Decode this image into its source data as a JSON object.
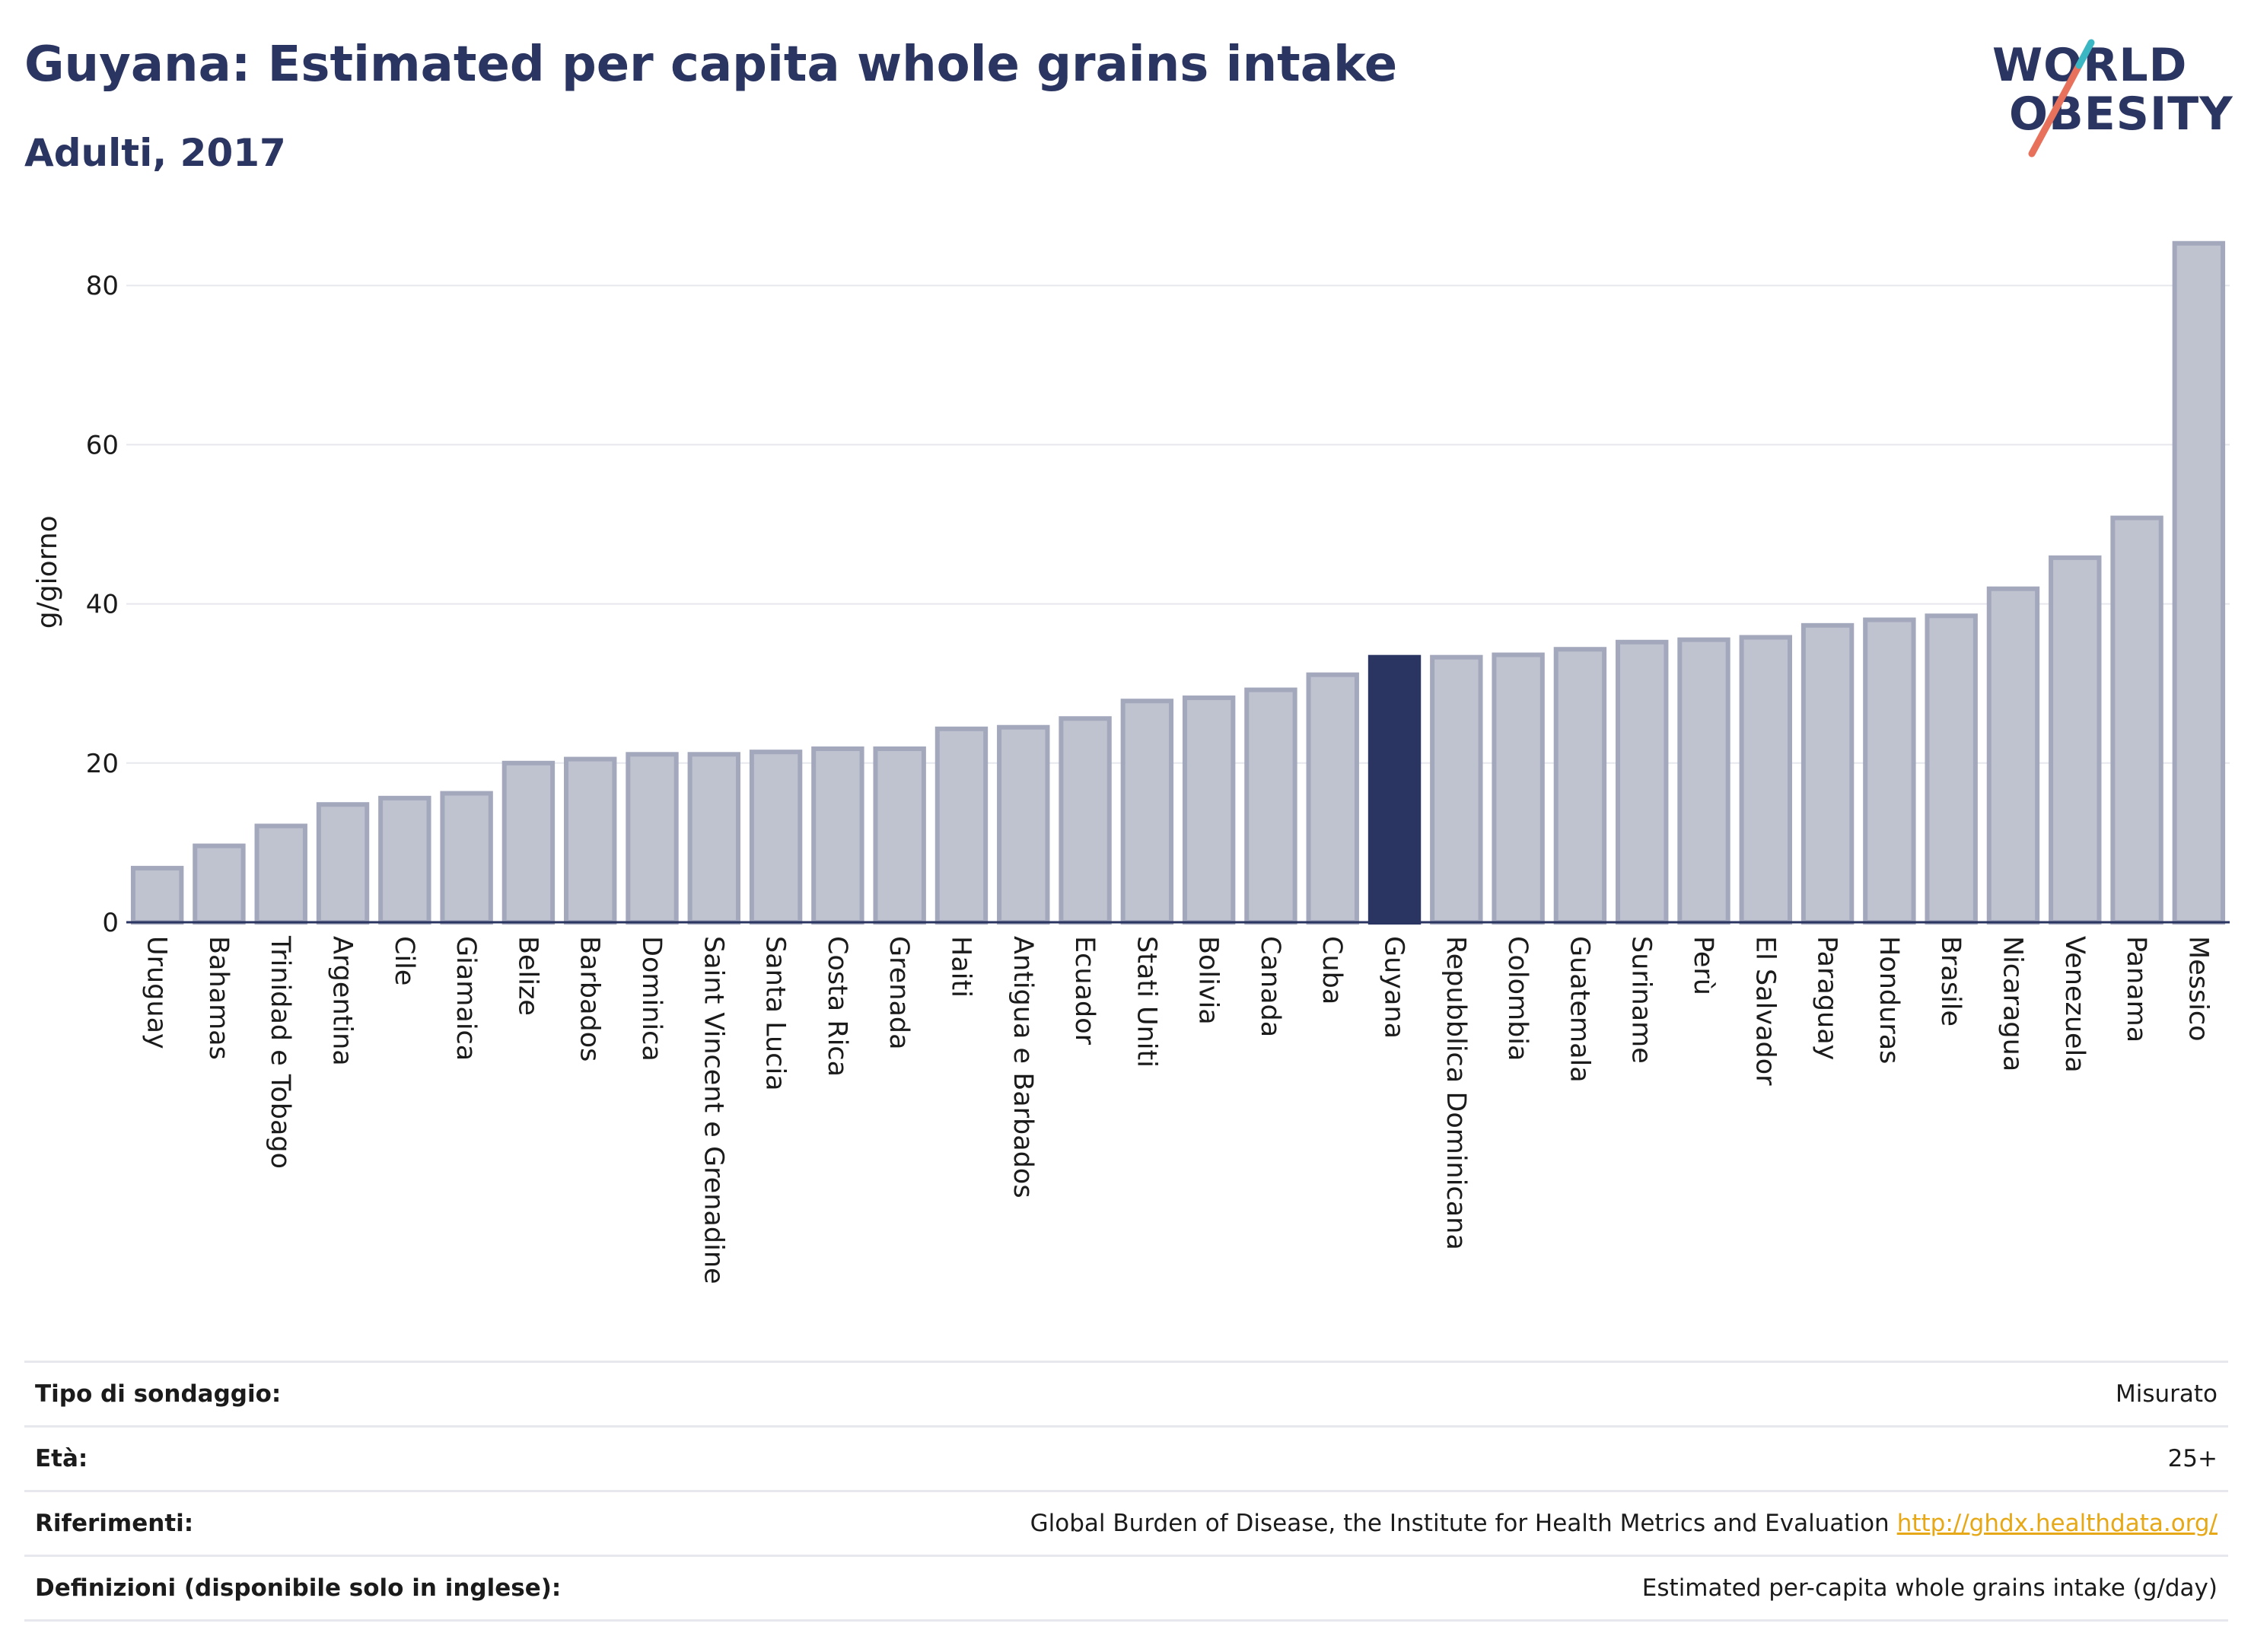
{
  "title": "Guyana: Estimated per capita whole grains intake",
  "subtitle": "Adulti, 2017",
  "logo": {
    "line1": "WORLD",
    "line2": "OBESITY"
  },
  "colors": {
    "bar": "#bfc2cf",
    "bar_border": "#a3a8bc",
    "highlight": "#2b3561",
    "grid": "#e6e8ee",
    "axis": "#2b3561"
  },
  "chart_data": {
    "type": "bar",
    "ylabel": "g/giorno",
    "ylim": [
      0,
      88
    ],
    "yticks": [
      0,
      20,
      40,
      60,
      80
    ],
    "highlight": "Guyana",
    "categories": [
      "Uruguay",
      "Bahamas",
      "Trinidad e Tobago",
      "Argentina",
      "Cile",
      "Giamaica",
      "Belize",
      "Barbados",
      "Dominica",
      "Saint Vincent e Grenadine",
      "Santa Lucia",
      "Costa Rica",
      "Grenada",
      "Haiti",
      "Antigua e Barbados",
      "Ecuador",
      "Stati Uniti",
      "Bolivia",
      "Canada",
      "Cuba",
      "Guyana",
      "Repubblica Dominicana",
      "Colombia",
      "Guatemala",
      "Suriname",
      "Perù",
      "El Salvador",
      "Paraguay",
      "Honduras",
      "Brasile",
      "Nicaragua",
      "Venezuela",
      "Panama",
      "Messico"
    ],
    "values": [
      6.8,
      9.6,
      12.1,
      14.8,
      15.6,
      16.2,
      20.0,
      20.5,
      21.1,
      21.1,
      21.4,
      21.8,
      21.8,
      24.3,
      24.5,
      25.6,
      27.8,
      28.2,
      29.2,
      31.1,
      33.3,
      33.3,
      33.6,
      34.3,
      35.2,
      35.5,
      35.8,
      37.3,
      38.0,
      38.5,
      41.9,
      45.8,
      50.8,
      85.3
    ]
  },
  "meta": {
    "survey_label": "Tipo di sondaggio:",
    "survey_value": "Misurato",
    "age_label": "Età:",
    "age_value": "25+",
    "ref_label": "Riferimenti:",
    "ref_value": "Global Burden of Disease, the Institute for Health Metrics and Evaluation",
    "ref_link": "http://ghdx.healthdata.org/",
    "def_label": "Definizioni (disponibile solo in inglese):",
    "def_value": "Estimated per-capita whole grains intake (g/day)"
  }
}
